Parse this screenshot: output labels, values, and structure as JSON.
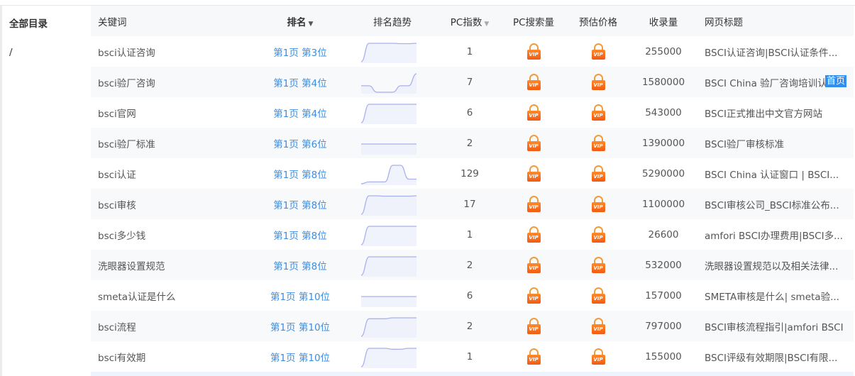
{
  "sidebar": {
    "title": "全部目录",
    "path": "/"
  },
  "columns": {
    "keyword": "关键词",
    "rank": "排名",
    "trend": "排名趋势",
    "pc_index": "PC指数",
    "pc_search": "PC搜索量",
    "price": "预估价格",
    "indexed": "收录量",
    "page_title": "网页标题"
  },
  "colors": {
    "rank_link": "#3c8de0",
    "vip": "#f25a12",
    "trend_line": "#a8b0ee",
    "trend_fill": "#eef0fb",
    "badge": "#2f8ef0"
  },
  "vip_label": "VIP",
  "badge": "首页",
  "rows": [
    {
      "keyword": "bsci认证咨询",
      "rank": "第1页 第3位",
      "pc_index": "1",
      "indexed": "255000",
      "title": "BSCI认证咨询|BSCI认证条件...",
      "trend": [
        0,
        1,
        1,
        1,
        1,
        0.98,
        0.98,
        1
      ]
    },
    {
      "keyword": "bsci验厂咨询",
      "rank": "第1页 第4位",
      "pc_index": "7",
      "indexed": "1580000",
      "title": "BSCI China 验厂咨询培训认",
      "trend": [
        0.35,
        0.35,
        0,
        0,
        0,
        0.35,
        0.35,
        1
      ],
      "badge": true
    },
    {
      "keyword": "bsci官网",
      "rank": "第1页 第4位",
      "pc_index": "6",
      "indexed": "543000",
      "title": "BSCI正式推出中文官方网站",
      "trend": [
        0,
        1,
        1,
        1,
        1,
        1,
        1,
        1
      ]
    },
    {
      "keyword": "bsci验厂标准",
      "rank": "第1页 第6位",
      "pc_index": "2",
      "indexed": "1390000",
      "title": "BSCI验厂审核标准",
      "trend": [
        0.5,
        0.5,
        0.5,
        0.5,
        0.5,
        0.5,
        0.5,
        0.5
      ]
    },
    {
      "keyword": "bsci认证",
      "rank": "第1页 第8位",
      "pc_index": "129",
      "indexed": "5290000",
      "title": "BSCI China 认证窗口 | BSCI...",
      "trend": [
        0,
        0.1,
        0.1,
        0.1,
        1,
        1,
        0.25,
        0.25
      ]
    },
    {
      "keyword": "bsci审核",
      "rank": "第1页 第8位",
      "pc_index": "17",
      "indexed": "1100000",
      "title": "BSCI审核公司_BSCI标准公布...",
      "trend": [
        0,
        1,
        1,
        0.98,
        0.98,
        0.98,
        0.98,
        1
      ]
    },
    {
      "keyword": "bsci多少钱",
      "rank": "第1页 第8位",
      "pc_index": "1",
      "indexed": "26600",
      "title": "amfori BSCI办理费用|BSCI多...",
      "trend": [
        0,
        1,
        1,
        1,
        1,
        1,
        1,
        1
      ]
    },
    {
      "keyword": "洗眼器设置规范",
      "rank": "第1页 第8位",
      "pc_index": "2",
      "indexed": "532000",
      "title": "洗眼器设置规范以及相关法律...",
      "trend": [
        0,
        1,
        1,
        1,
        1,
        1,
        1,
        1
      ]
    },
    {
      "keyword": "smeta认证是什么",
      "rank": "第1页 第10位",
      "pc_index": "6",
      "indexed": "157000",
      "title": "SMETA审核是什么| smeta验...",
      "trend": [
        0.5,
        0.5,
        0.5,
        0.5,
        0.5,
        0.5,
        0.5,
        0.5
      ]
    },
    {
      "keyword": "bsci流程",
      "rank": "第1页 第10位",
      "pc_index": "2",
      "indexed": "797000",
      "title": "BSCI审核流程指引|amfori BSCI",
      "trend": [
        0,
        0.95,
        0.95,
        0.95,
        1,
        1,
        1,
        1
      ]
    },
    {
      "keyword": "bsci有效期",
      "rank": "第1页 第10位",
      "pc_index": "1",
      "indexed": "155000",
      "title": "BSCI评级有效期限|BSCI有限...",
      "trend": [
        0,
        1,
        1,
        1,
        0.95,
        0.95,
        1,
        1
      ]
    }
  ]
}
